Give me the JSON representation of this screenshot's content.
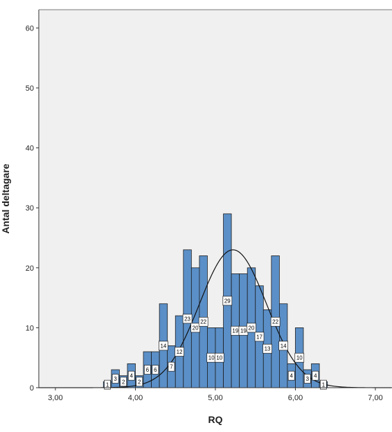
{
  "chart_data": {
    "type": "bar",
    "title": "",
    "xlabel": "RQ",
    "ylabel": "Antal deltagare",
    "xlim": [
      2.7,
      7.2
    ],
    "ylim": [
      0,
      62
    ],
    "x_ticks": [
      3,
      4,
      5,
      6,
      7
    ],
    "x_tick_labels": [
      "3,00",
      "4,00",
      "5,00",
      "6,00",
      "7,00"
    ],
    "y_ticks": [
      0,
      10,
      20,
      30,
      40,
      50,
      60
    ],
    "y_tick_labels": [
      "0",
      "10",
      "20",
      "30",
      "40",
      "50",
      "60"
    ],
    "bin_width": 0.1,
    "bins": [
      {
        "x": 3.65,
        "count": 1
      },
      {
        "x": 3.75,
        "count": 3
      },
      {
        "x": 3.85,
        "count": 2
      },
      {
        "x": 3.95,
        "count": 4
      },
      {
        "x": 4.05,
        "count": 2
      },
      {
        "x": 4.15,
        "count": 6
      },
      {
        "x": 4.25,
        "count": 6
      },
      {
        "x": 4.35,
        "count": 14
      },
      {
        "x": 4.45,
        "count": 7
      },
      {
        "x": 4.55,
        "count": 12
      },
      {
        "x": 4.65,
        "count": 23
      },
      {
        "x": 4.75,
        "count": 20
      },
      {
        "x": 4.85,
        "count": 22
      },
      {
        "x": 4.95,
        "count": 10
      },
      {
        "x": 5.05,
        "count": 10
      },
      {
        "x": 5.15,
        "count": 29
      },
      {
        "x": 5.25,
        "count": 19
      },
      {
        "x": 5.35,
        "count": 19
      },
      {
        "x": 5.45,
        "count": 20
      },
      {
        "x": 5.55,
        "count": 17
      },
      {
        "x": 5.65,
        "count": 13
      },
      {
        "x": 5.75,
        "count": 22
      },
      {
        "x": 5.85,
        "count": 14
      },
      {
        "x": 5.95,
        "count": 4
      },
      {
        "x": 6.05,
        "count": 10
      },
      {
        "x": 6.15,
        "count": 3
      },
      {
        "x": 6.25,
        "count": 4
      },
      {
        "x": 6.35,
        "count": 1
      }
    ],
    "bar_color": "#5b8fc7",
    "bar_edge_color": "#1e1e1e",
    "plot_background": "#f0f0f0",
    "grid": false,
    "legend": "none",
    "normal_curve": {
      "mean": 5.22,
      "sd": 0.42,
      "peak": 23
    }
  }
}
